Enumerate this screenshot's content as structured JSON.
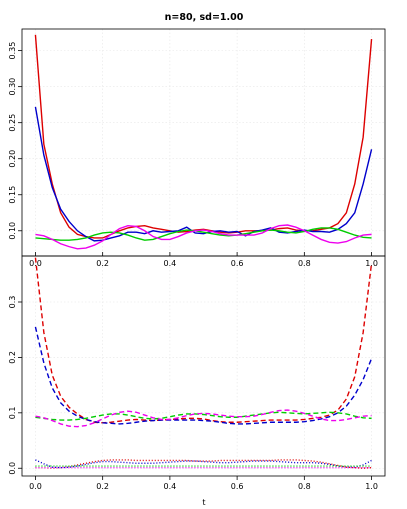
{
  "title": "n=80, sd=1.00",
  "chart_data": [
    {
      "type": "line",
      "panel": "top",
      "title": "n=80, sd=1.00",
      "xlabel": "",
      "ylabel": "",
      "xlim": [
        -0.04,
        1.04
      ],
      "ylim": [
        0.065,
        0.38
      ],
      "x_ticks": [
        "0.0",
        "0.2",
        "0.4",
        "0.6",
        "0.8",
        "1.0"
      ],
      "y_ticks": [
        "0.10",
        "0.15",
        "0.20",
        "0.25",
        "0.30",
        "0.35"
      ],
      "grid": true,
      "x": [
        0.0,
        0.025,
        0.05,
        0.075,
        0.1,
        0.125,
        0.15,
        0.175,
        0.2,
        0.225,
        0.25,
        0.275,
        0.3,
        0.325,
        0.35,
        0.375,
        0.4,
        0.425,
        0.45,
        0.475,
        0.5,
        0.525,
        0.55,
        0.575,
        0.6,
        0.625,
        0.65,
        0.675,
        0.7,
        0.725,
        0.75,
        0.775,
        0.8,
        0.825,
        0.85,
        0.875,
        0.9,
        0.925,
        0.95,
        0.975,
        1.0
      ],
      "series": [
        {
          "color": "#dd0000",
          "style": "solid",
          "values": [
            0.372,
            0.22,
            0.165,
            0.125,
            0.105,
            0.095,
            0.092,
            0.09,
            0.09,
            0.095,
            0.1,
            0.104,
            0.106,
            0.107,
            0.104,
            0.102,
            0.1,
            0.098,
            0.099,
            0.101,
            0.102,
            0.1,
            0.098,
            0.097,
            0.098,
            0.1,
            0.1,
            0.1,
            0.101,
            0.103,
            0.104,
            0.101,
            0.1,
            0.1,
            0.102,
            0.104,
            0.11,
            0.125,
            0.165,
            0.23,
            0.366
          ]
        },
        {
          "color": "#0000cc",
          "style": "solid",
          "values": [
            0.272,
            0.205,
            0.16,
            0.13,
            0.113,
            0.1,
            0.092,
            0.086,
            0.087,
            0.09,
            0.093,
            0.098,
            0.098,
            0.096,
            0.1,
            0.098,
            0.099,
            0.1,
            0.105,
            0.097,
            0.096,
            0.099,
            0.1,
            0.098,
            0.099,
            0.093,
            0.099,
            0.101,
            0.104,
            0.098,
            0.097,
            0.099,
            0.101,
            0.099,
            0.099,
            0.098,
            0.102,
            0.11,
            0.125,
            0.165,
            0.213
          ]
        },
        {
          "color": "#00cc00",
          "style": "solid",
          "values": [
            0.09,
            0.089,
            0.088,
            0.087,
            0.087,
            0.088,
            0.09,
            0.094,
            0.097,
            0.098,
            0.097,
            0.094,
            0.09,
            0.087,
            0.088,
            0.092,
            0.096,
            0.099,
            0.101,
            0.1,
            0.098,
            0.096,
            0.094,
            0.093,
            0.094,
            0.096,
            0.098,
            0.1,
            0.101,
            0.1,
            0.098,
            0.097,
            0.099,
            0.102,
            0.104,
            0.104,
            0.102,
            0.098,
            0.094,
            0.091,
            0.09
          ]
        },
        {
          "color": "#ee00ee",
          "style": "solid",
          "values": [
            0.095,
            0.093,
            0.088,
            0.082,
            0.078,
            0.075,
            0.076,
            0.08,
            0.086,
            0.095,
            0.103,
            0.107,
            0.106,
            0.1,
            0.092,
            0.088,
            0.088,
            0.092,
            0.097,
            0.1,
            0.101,
            0.099,
            0.096,
            0.094,
            0.094,
            0.094,
            0.094,
            0.097,
            0.103,
            0.107,
            0.108,
            0.105,
            0.1,
            0.094,
            0.088,
            0.084,
            0.083,
            0.085,
            0.09,
            0.094,
            0.095
          ]
        }
      ]
    },
    {
      "type": "line",
      "panel": "bottom",
      "title": "",
      "xlabel": "t",
      "ylabel": "",
      "xlim": [
        -0.04,
        1.04
      ],
      "ylim": [
        -0.014,
        0.383
      ],
      "x_ticks": [
        "0.0",
        "0.2",
        "0.4",
        "0.6",
        "0.8",
        "1.0"
      ],
      "y_ticks": [
        "0.0",
        "0.1",
        "0.2",
        "0.3"
      ],
      "grid": true,
      "x": [
        0.0,
        0.025,
        0.05,
        0.075,
        0.1,
        0.125,
        0.15,
        0.175,
        0.2,
        0.225,
        0.25,
        0.275,
        0.3,
        0.325,
        0.35,
        0.375,
        0.4,
        0.425,
        0.45,
        0.475,
        0.5,
        0.525,
        0.55,
        0.575,
        0.6,
        0.625,
        0.65,
        0.675,
        0.7,
        0.725,
        0.75,
        0.775,
        0.8,
        0.825,
        0.85,
        0.875,
        0.9,
        0.925,
        0.95,
        0.975,
        1.0
      ],
      "series": [
        {
          "color": "#dd0000",
          "style": "dashed",
          "values": [
            0.38,
            0.245,
            0.168,
            0.13,
            0.11,
            0.098,
            0.088,
            0.083,
            0.082,
            0.083,
            0.085,
            0.087,
            0.088,
            0.087,
            0.086,
            0.087,
            0.088,
            0.089,
            0.09,
            0.09,
            0.089,
            0.086,
            0.084,
            0.083,
            0.083,
            0.084,
            0.085,
            0.086,
            0.087,
            0.087,
            0.087,
            0.087,
            0.088,
            0.09,
            0.092,
            0.096,
            0.105,
            0.125,
            0.165,
            0.245,
            0.37
          ]
        },
        {
          "color": "#0000cc",
          "style": "dashed",
          "values": [
            0.255,
            0.19,
            0.145,
            0.118,
            0.103,
            0.094,
            0.088,
            0.084,
            0.082,
            0.081,
            0.08,
            0.081,
            0.083,
            0.085,
            0.086,
            0.087,
            0.087,
            0.087,
            0.087,
            0.087,
            0.086,
            0.085,
            0.083,
            0.081,
            0.08,
            0.08,
            0.081,
            0.082,
            0.083,
            0.083,
            0.083,
            0.083,
            0.084,
            0.086,
            0.089,
            0.093,
            0.1,
            0.112,
            0.132,
            0.16,
            0.198
          ]
        },
        {
          "color": "#00cc00",
          "style": "dashed",
          "values": [
            0.092,
            0.09,
            0.088,
            0.087,
            0.087,
            0.088,
            0.09,
            0.093,
            0.096,
            0.098,
            0.098,
            0.096,
            0.093,
            0.09,
            0.089,
            0.09,
            0.093,
            0.096,
            0.098,
            0.098,
            0.097,
            0.095,
            0.093,
            0.092,
            0.092,
            0.094,
            0.096,
            0.098,
            0.1,
            0.101,
            0.1,
            0.099,
            0.098,
            0.099,
            0.1,
            0.101,
            0.1,
            0.098,
            0.094,
            0.091,
            0.09
          ]
        },
        {
          "color": "#ee00ee",
          "style": "dashed",
          "values": [
            0.094,
            0.091,
            0.086,
            0.08,
            0.076,
            0.075,
            0.077,
            0.082,
            0.089,
            0.096,
            0.101,
            0.103,
            0.101,
            0.096,
            0.091,
            0.088,
            0.088,
            0.091,
            0.095,
            0.098,
            0.099,
            0.098,
            0.096,
            0.094,
            0.093,
            0.093,
            0.094,
            0.097,
            0.101,
            0.104,
            0.105,
            0.103,
            0.099,
            0.094,
            0.089,
            0.086,
            0.086,
            0.088,
            0.091,
            0.094,
            0.095
          ]
        },
        {
          "color": "#dd0000",
          "style": "dotted",
          "values": [
            0.001,
            0.001,
            0.0,
            0.001,
            0.003,
            0.006,
            0.009,
            0.012,
            0.014,
            0.015,
            0.015,
            0.015,
            0.014,
            0.014,
            0.014,
            0.014,
            0.014,
            0.014,
            0.014,
            0.013,
            0.013,
            0.013,
            0.014,
            0.014,
            0.014,
            0.014,
            0.014,
            0.014,
            0.014,
            0.015,
            0.015,
            0.015,
            0.014,
            0.013,
            0.011,
            0.008,
            0.005,
            0.002,
            0.001,
            0.0,
            0.001
          ]
        },
        {
          "color": "#0000cc",
          "style": "dotted",
          "values": [
            0.015,
            0.008,
            0.002,
            0.001,
            0.002,
            0.004,
            0.007,
            0.01,
            0.012,
            0.012,
            0.011,
            0.01,
            0.009,
            0.009,
            0.009,
            0.01,
            0.011,
            0.012,
            0.013,
            0.013,
            0.012,
            0.011,
            0.01,
            0.01,
            0.011,
            0.012,
            0.013,
            0.013,
            0.013,
            0.012,
            0.011,
            0.01,
            0.01,
            0.01,
            0.009,
            0.007,
            0.004,
            0.002,
            0.002,
            0.006,
            0.014
          ]
        },
        {
          "color": "#00cc00",
          "style": "dotted",
          "values": [
            0.004,
            0.004,
            0.004,
            0.004,
            0.004,
            0.004,
            0.004,
            0.004,
            0.004,
            0.004,
            0.004,
            0.004,
            0.004,
            0.004,
            0.004,
            0.004,
            0.004,
            0.004,
            0.004,
            0.004,
            0.004,
            0.004,
            0.004,
            0.004,
            0.004,
            0.004,
            0.004,
            0.004,
            0.004,
            0.004,
            0.004,
            0.004,
            0.004,
            0.004,
            0.004,
            0.004,
            0.004,
            0.004,
            0.004,
            0.004,
            0.004
          ]
        },
        {
          "color": "#ee00ee",
          "style": "dotted",
          "values": [
            0.001,
            0.001,
            0.001,
            0.001,
            0.001,
            0.001,
            0.001,
            0.001,
            0.001,
            0.001,
            0.001,
            0.001,
            0.001,
            0.001,
            0.001,
            0.001,
            0.001,
            0.001,
            0.001,
            0.001,
            0.001,
            0.001,
            0.001,
            0.001,
            0.001,
            0.001,
            0.001,
            0.001,
            0.001,
            0.001,
            0.001,
            0.001,
            0.001,
            0.001,
            0.001,
            0.001,
            0.001,
            0.001,
            0.001,
            0.001,
            0.001
          ]
        }
      ]
    }
  ]
}
